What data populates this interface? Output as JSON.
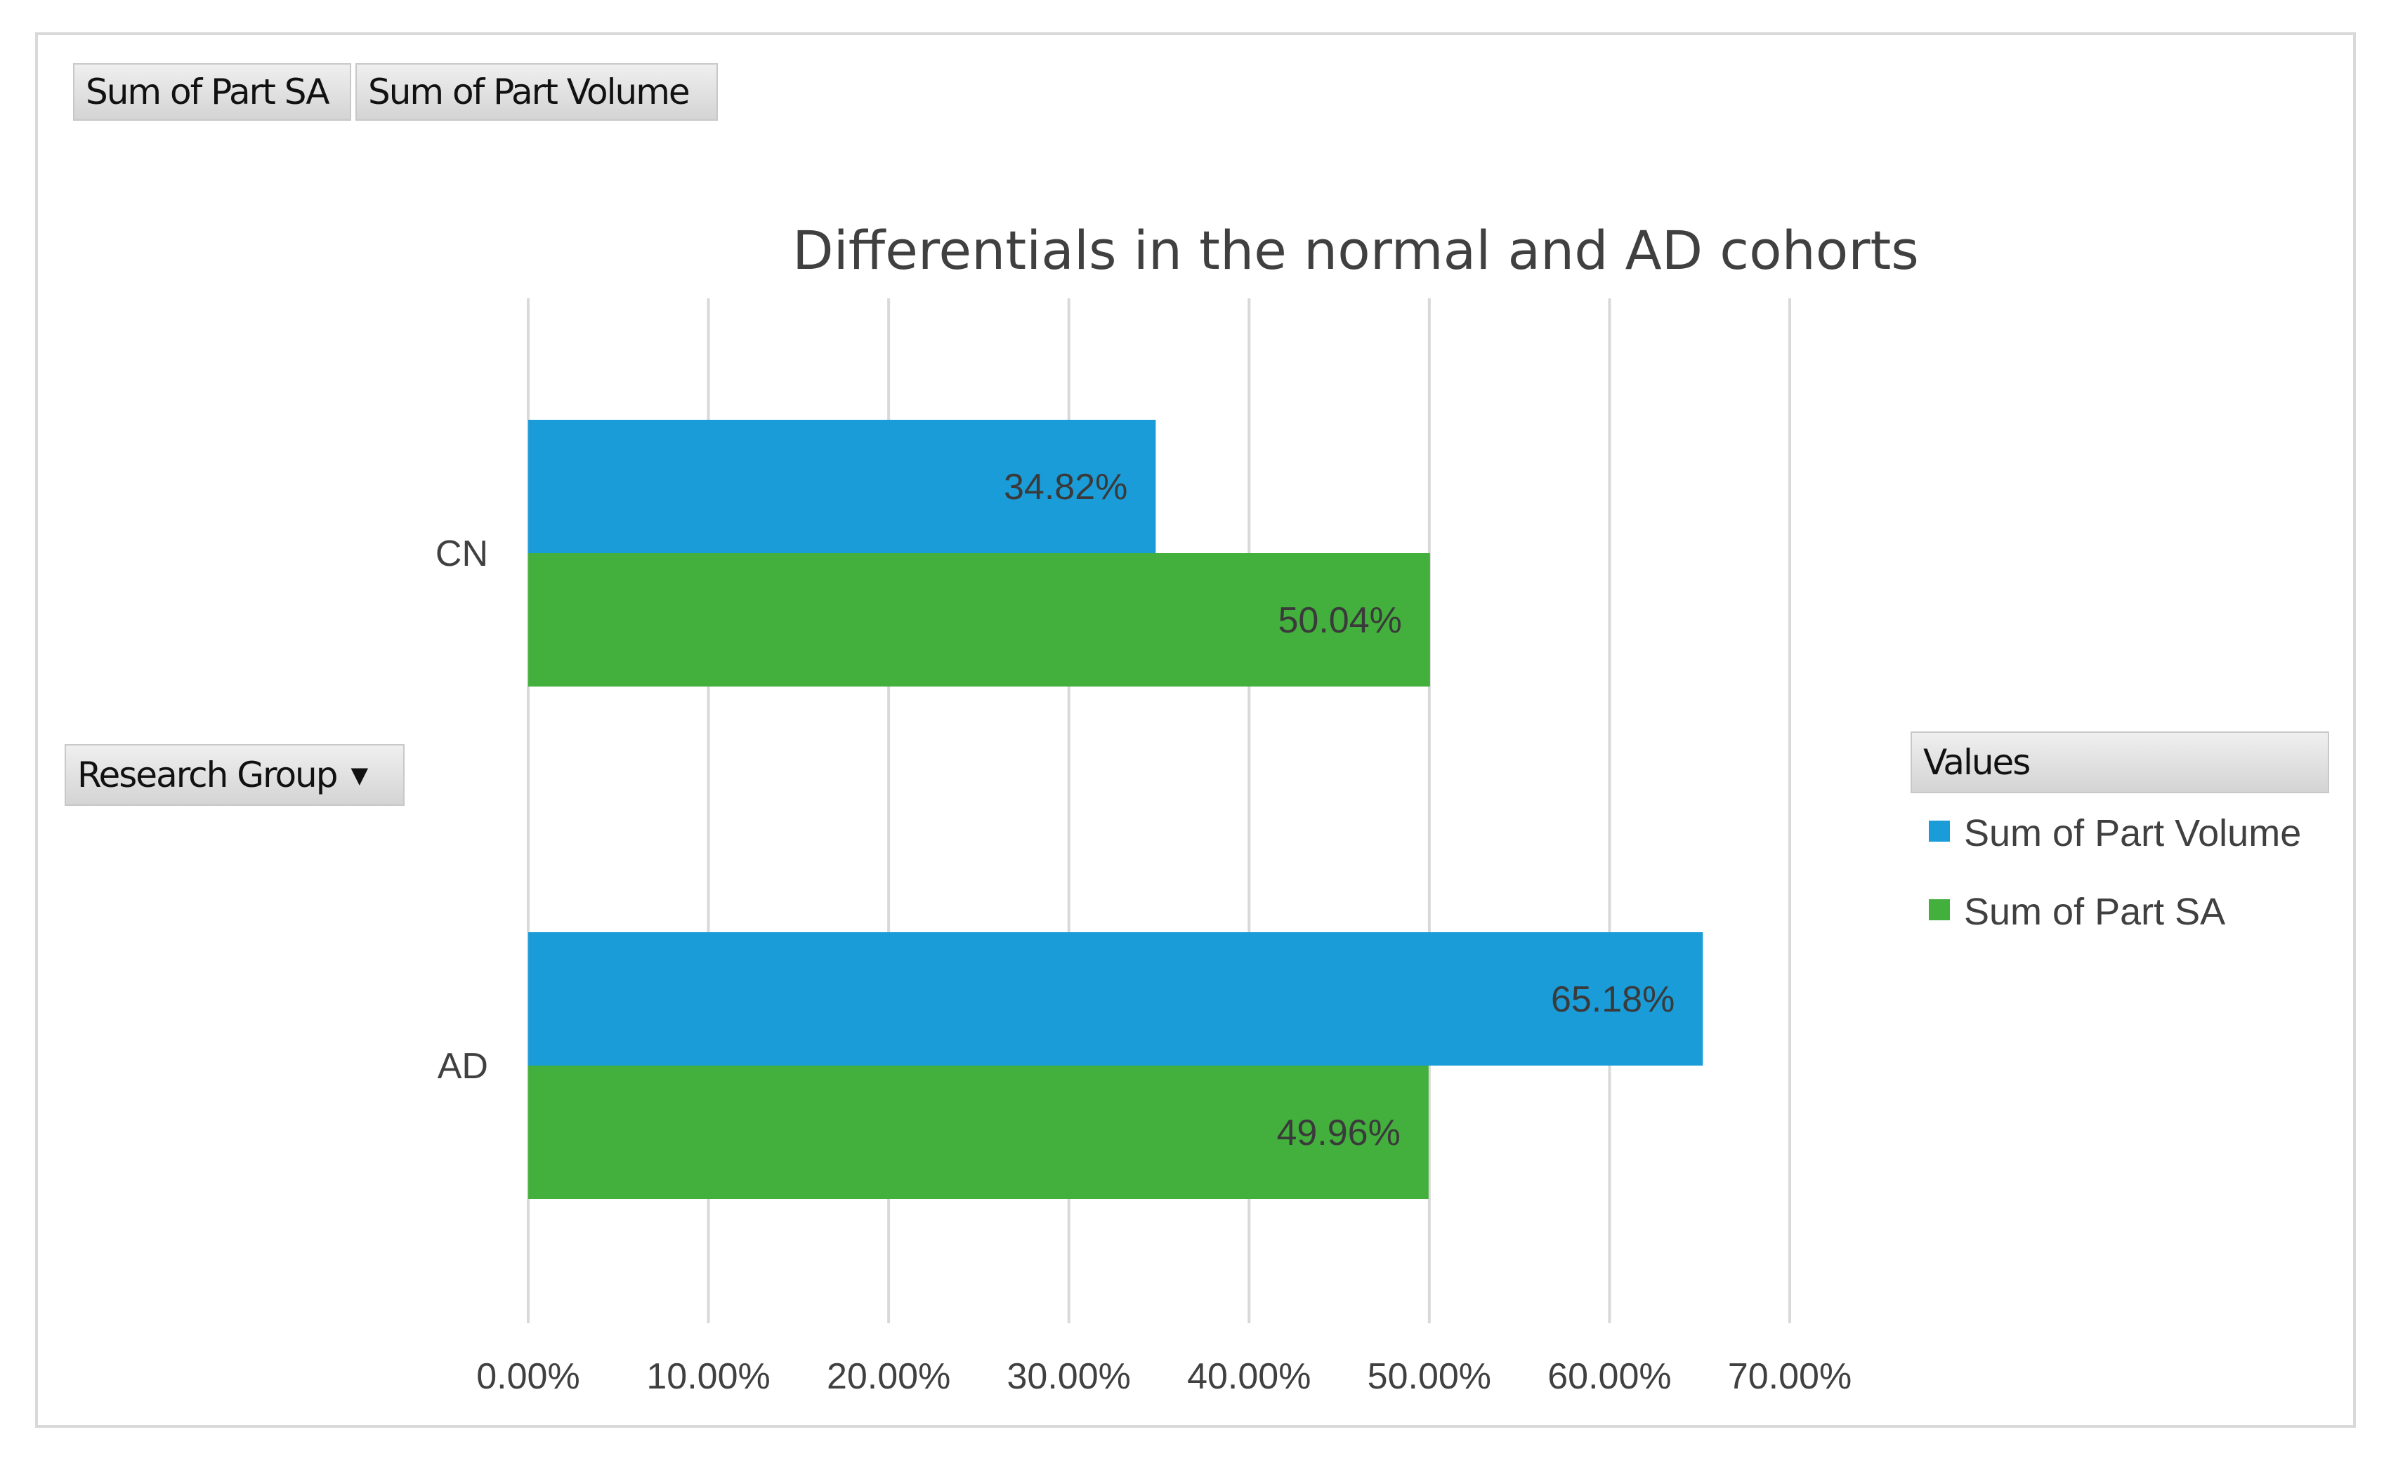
{
  "field_buttons": {
    "sum_part_sa": "Sum of Part SA",
    "sum_part_volume": "Sum of Part Volume",
    "research_group": "Research Group",
    "values": "Values"
  },
  "colors": {
    "volume": "#1a9cd8",
    "sa": "#43b03d",
    "grid": "#d9d9d9"
  },
  "chart_data": {
    "type": "bar",
    "orientation": "horizontal",
    "title": "Differentials in the normal and AD cohorts",
    "categories": [
      "CN",
      "AD"
    ],
    "series": [
      {
        "name": "Sum of Part Volume",
        "values": [
          34.82,
          65.18
        ],
        "labels": [
          "34.82%",
          "65.18%"
        ]
      },
      {
        "name": "Sum of Part SA",
        "values": [
          50.04,
          49.96
        ],
        "labels": [
          "50.04%",
          "49.96%"
        ]
      }
    ],
    "xlim": [
      0,
      70
    ],
    "xticks": [
      0,
      10,
      20,
      30,
      40,
      50,
      60,
      70
    ],
    "xtick_labels": [
      "0.00%",
      "10.00%",
      "20.00%",
      "30.00%",
      "40.00%",
      "50.00%",
      "60.00%",
      "70.00%"
    ],
    "grid": true,
    "legend_title": "Values",
    "legend_position": "right"
  }
}
